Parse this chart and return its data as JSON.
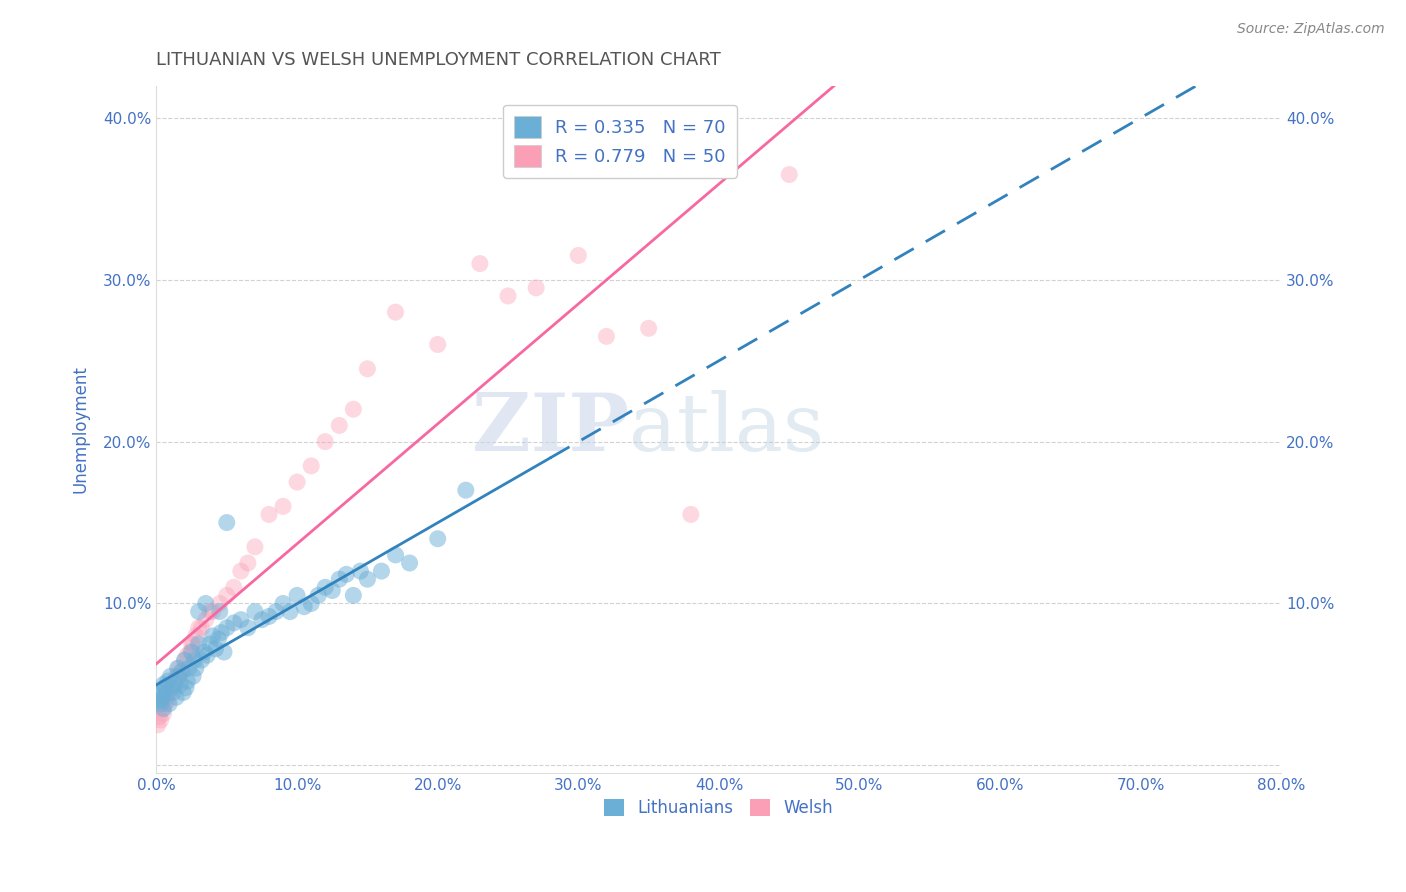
{
  "title": "LITHUANIAN VS WELSH UNEMPLOYMENT CORRELATION CHART",
  "source": "Source: ZipAtlas.com",
  "ylabel": "Unemployment",
  "xlim": [
    0.0,
    0.8
  ],
  "ylim": [
    -0.005,
    0.42
  ],
  "xticks": [
    0.0,
    0.1,
    0.2,
    0.3,
    0.4,
    0.5,
    0.6,
    0.7,
    0.8
  ],
  "xticklabels": [
    "0.0%",
    "10.0%",
    "20.0%",
    "30.0%",
    "40.0%",
    "50.0%",
    "60.0%",
    "70.0%",
    "80.0%"
  ],
  "yticks": [
    0.0,
    0.1,
    0.2,
    0.3,
    0.4
  ],
  "yticklabels": [
    "",
    "10.0%",
    "20.0%",
    "30.0%",
    "40.0%"
  ],
  "blue_color": "#6baed6",
  "pink_color": "#fa9fb5",
  "blue_line_color": "#3182bd",
  "pink_line_color": "#f768a1",
  "blue_scatter_alpha": 0.5,
  "pink_scatter_alpha": 0.4,
  "legend_R1": "R = 0.335",
  "legend_N1": "N = 70",
  "legend_R2": "R = 0.779",
  "legend_N2": "N = 50",
  "legend_label1": "Lithuanians",
  "legend_label2": "Welsh",
  "title_color": "#555555",
  "tick_color": "#4472c4",
  "axis_label_color": "#4472c4",
  "blue_points_x": [
    0.001,
    0.002,
    0.003,
    0.004,
    0.005,
    0.005,
    0.006,
    0.007,
    0.008,
    0.009,
    0.01,
    0.011,
    0.012,
    0.013,
    0.014,
    0.015,
    0.016,
    0.017,
    0.018,
    0.019,
    0.02,
    0.021,
    0.022,
    0.023,
    0.025,
    0.026,
    0.027,
    0.028,
    0.03,
    0.032,
    0.034,
    0.036,
    0.038,
    0.04,
    0.042,
    0.044,
    0.046,
    0.048,
    0.05,
    0.055,
    0.06,
    0.065,
    0.07,
    0.075,
    0.08,
    0.085,
    0.09,
    0.095,
    0.1,
    0.105,
    0.11,
    0.115,
    0.12,
    0.125,
    0.13,
    0.135,
    0.14,
    0.145,
    0.15,
    0.16,
    0.17,
    0.18,
    0.2,
    0.22,
    0.05,
    0.03,
    0.035,
    0.045,
    0.003,
    0.006
  ],
  "blue_points_y": [
    0.04,
    0.045,
    0.038,
    0.042,
    0.05,
    0.035,
    0.048,
    0.044,
    0.052,
    0.038,
    0.055,
    0.048,
    0.045,
    0.05,
    0.042,
    0.06,
    0.055,
    0.05,
    0.058,
    0.045,
    0.065,
    0.048,
    0.052,
    0.06,
    0.07,
    0.055,
    0.065,
    0.06,
    0.075,
    0.065,
    0.07,
    0.068,
    0.075,
    0.08,
    0.072,
    0.078,
    0.082,
    0.07,
    0.085,
    0.088,
    0.09,
    0.085,
    0.095,
    0.09,
    0.092,
    0.095,
    0.1,
    0.095,
    0.105,
    0.098,
    0.1,
    0.105,
    0.11,
    0.108,
    0.115,
    0.118,
    0.105,
    0.12,
    0.115,
    0.12,
    0.13,
    0.125,
    0.14,
    0.17,
    0.15,
    0.095,
    0.1,
    0.095,
    0.04,
    0.048
  ],
  "pink_points_x": [
    0.001,
    0.002,
    0.003,
    0.004,
    0.005,
    0.006,
    0.007,
    0.008,
    0.009,
    0.01,
    0.012,
    0.014,
    0.016,
    0.018,
    0.02,
    0.022,
    0.024,
    0.026,
    0.028,
    0.03,
    0.035,
    0.04,
    0.045,
    0.05,
    0.055,
    0.06,
    0.065,
    0.07,
    0.08,
    0.09,
    0.1,
    0.11,
    0.12,
    0.13,
    0.14,
    0.15,
    0.17,
    0.2,
    0.23,
    0.25,
    0.27,
    0.3,
    0.32,
    0.35,
    0.38,
    0.45,
    0.025,
    0.032,
    0.015,
    0.038
  ],
  "pink_points_y": [
    0.025,
    0.03,
    0.028,
    0.035,
    0.032,
    0.038,
    0.042,
    0.04,
    0.045,
    0.048,
    0.05,
    0.055,
    0.06,
    0.058,
    0.065,
    0.068,
    0.07,
    0.075,
    0.08,
    0.085,
    0.09,
    0.095,
    0.1,
    0.105,
    0.11,
    0.12,
    0.125,
    0.135,
    0.155,
    0.16,
    0.175,
    0.185,
    0.2,
    0.21,
    0.22,
    0.245,
    0.28,
    0.26,
    0.31,
    0.29,
    0.295,
    0.315,
    0.265,
    0.27,
    0.155,
    0.365,
    0.075,
    0.085,
    0.055,
    0.095
  ]
}
